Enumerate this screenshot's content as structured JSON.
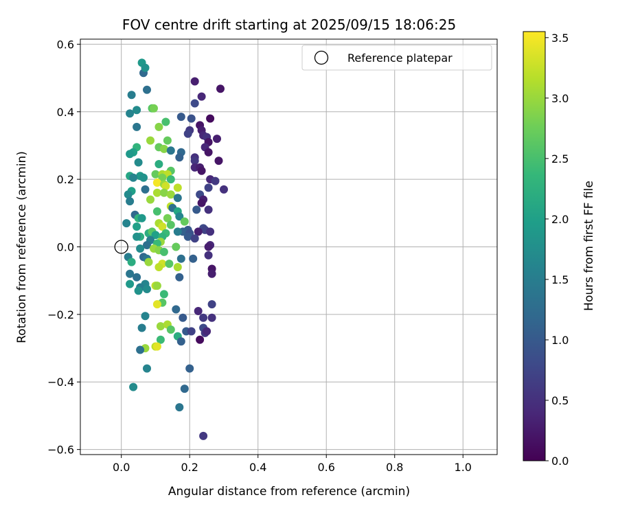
{
  "chart_data": {
    "type": "scatter",
    "title": "FOV centre drift starting at 2025/09/15 18:06:25",
    "xlabel": "Angular distance from reference (arcmin)",
    "ylabel": "Rotation from reference (arcmin)",
    "xlim": [
      -0.12,
      1.1
    ],
    "ylim": [
      -0.615,
      0.615
    ],
    "xticks": [
      0.0,
      0.2,
      0.4,
      0.6,
      0.8,
      1.0
    ],
    "xtick_labels": [
      "0.0",
      "0.2",
      "0.4",
      "0.6",
      "0.8",
      "1.0"
    ],
    "yticks": [
      -0.6,
      -0.4,
      -0.2,
      0.0,
      0.2,
      0.4,
      0.6
    ],
    "ytick_labels": [
      "−0.6",
      "−0.4",
      "−0.2",
      "0.0",
      "0.2",
      "0.4",
      "0.6"
    ],
    "grid": true,
    "colormap": "viridis",
    "colormap_stops": [
      "#440154",
      "#482878",
      "#3e4989",
      "#31688e",
      "#26828e",
      "#1f9e89",
      "#35b779",
      "#6ece58",
      "#b5de2b",
      "#fde725"
    ],
    "colorbar": {
      "label": "Hours from first FF file",
      "range": [
        0.0,
        3.55
      ],
      "ticks": [
        0.0,
        0.5,
        1.0,
        1.5,
        2.0,
        2.5,
        3.0,
        3.5
      ],
      "tick_labels": [
        "0.0",
        "0.5",
        "1.0",
        "1.5",
        "2.0",
        "2.5",
        "3.0",
        "3.5"
      ]
    },
    "legend": {
      "placement": "top-right",
      "entries": [
        {
          "label": "Reference platepar",
          "marker": "open-circle"
        }
      ]
    },
    "reference_point": {
      "x": 0.0,
      "y": 0.0
    },
    "points": [
      {
        "x": 0.06,
        "y": 0.545,
        "c": 1.9
      },
      {
        "x": 0.065,
        "y": 0.515,
        "c": 1.2
      },
      {
        "x": 0.07,
        "y": 0.53,
        "c": 1.8
      },
      {
        "x": 0.075,
        "y": 0.465,
        "c": 1.3
      },
      {
        "x": 0.03,
        "y": 0.45,
        "c": 1.5
      },
      {
        "x": 0.09,
        "y": 0.41,
        "c": 2.6
      },
      {
        "x": 0.025,
        "y": 0.395,
        "c": 1.6
      },
      {
        "x": 0.045,
        "y": 0.405,
        "c": 1.7
      },
      {
        "x": 0.095,
        "y": 0.41,
        "c": 2.8
      },
      {
        "x": 0.13,
        "y": 0.37,
        "c": 2.5
      },
      {
        "x": 0.11,
        "y": 0.355,
        "c": 2.9
      },
      {
        "x": 0.045,
        "y": 0.355,
        "c": 1.4
      },
      {
        "x": 0.215,
        "y": 0.49,
        "c": 0.3
      },
      {
        "x": 0.235,
        "y": 0.445,
        "c": 0.4
      },
      {
        "x": 0.29,
        "y": 0.468,
        "c": 0.2
      },
      {
        "x": 0.215,
        "y": 0.425,
        "c": 0.8
      },
      {
        "x": 0.175,
        "y": 0.385,
        "c": 1.0
      },
      {
        "x": 0.205,
        "y": 0.38,
        "c": 0.9
      },
      {
        "x": 0.26,
        "y": 0.38,
        "c": 0.1
      },
      {
        "x": 0.23,
        "y": 0.36,
        "c": 0.2
      },
      {
        "x": 0.235,
        "y": 0.345,
        "c": 0.3
      },
      {
        "x": 0.2,
        "y": 0.345,
        "c": 0.6
      },
      {
        "x": 0.195,
        "y": 0.335,
        "c": 0.7
      },
      {
        "x": 0.24,
        "y": 0.33,
        "c": 0.4
      },
      {
        "x": 0.25,
        "y": 0.325,
        "c": 0.5
      },
      {
        "x": 0.28,
        "y": 0.32,
        "c": 0.3
      },
      {
        "x": 0.255,
        "y": 0.31,
        "c": 0.2
      },
      {
        "x": 0.245,
        "y": 0.295,
        "c": 0.4
      },
      {
        "x": 0.255,
        "y": 0.28,
        "c": 0.2
      },
      {
        "x": 0.135,
        "y": 0.315,
        "c": 2.7
      },
      {
        "x": 0.085,
        "y": 0.315,
        "c": 3.0
      },
      {
        "x": 0.045,
        "y": 0.295,
        "c": 2.3
      },
      {
        "x": 0.11,
        "y": 0.295,
        "c": 2.7
      },
      {
        "x": 0.125,
        "y": 0.29,
        "c": 2.9
      },
      {
        "x": 0.145,
        "y": 0.285,
        "c": 1.4
      },
      {
        "x": 0.175,
        "y": 0.28,
        "c": 1.2
      },
      {
        "x": 0.035,
        "y": 0.28,
        "c": 2.0
      },
      {
        "x": 0.025,
        "y": 0.275,
        "c": 1.9
      },
      {
        "x": 0.17,
        "y": 0.265,
        "c": 1.1
      },
      {
        "x": 0.215,
        "y": 0.265,
        "c": 0.5
      },
      {
        "x": 0.215,
        "y": 0.255,
        "c": 0.6
      },
      {
        "x": 0.285,
        "y": 0.255,
        "c": 0.2
      },
      {
        "x": 0.05,
        "y": 0.25,
        "c": 1.7
      },
      {
        "x": 0.11,
        "y": 0.245,
        "c": 2.2
      },
      {
        "x": 0.215,
        "y": 0.235,
        "c": 0.4
      },
      {
        "x": 0.23,
        "y": 0.235,
        "c": 0.3
      },
      {
        "x": 0.235,
        "y": 0.225,
        "c": 0.2
      },
      {
        "x": 0.145,
        "y": 0.225,
        "c": 2.6
      },
      {
        "x": 0.1,
        "y": 0.215,
        "c": 2.7
      },
      {
        "x": 0.12,
        "y": 0.215,
        "c": 3.1
      },
      {
        "x": 0.135,
        "y": 0.215,
        "c": 3.2
      },
      {
        "x": 0.025,
        "y": 0.21,
        "c": 2.1
      },
      {
        "x": 0.055,
        "y": 0.21,
        "c": 1.9
      },
      {
        "x": 0.065,
        "y": 0.205,
        "c": 1.8
      },
      {
        "x": 0.035,
        "y": 0.205,
        "c": 1.6
      },
      {
        "x": 0.12,
        "y": 0.205,
        "c": 2.8
      },
      {
        "x": 0.145,
        "y": 0.2,
        "c": 2.4
      },
      {
        "x": 0.26,
        "y": 0.2,
        "c": 0.4
      },
      {
        "x": 0.275,
        "y": 0.195,
        "c": 0.6
      },
      {
        "x": 0.105,
        "y": 0.19,
        "c": 3.5
      },
      {
        "x": 0.125,
        "y": 0.185,
        "c": 3.0
      },
      {
        "x": 0.13,
        "y": 0.18,
        "c": 3.3
      },
      {
        "x": 0.165,
        "y": 0.175,
        "c": 3.2
      },
      {
        "x": 0.255,
        "y": 0.175,
        "c": 0.7
      },
      {
        "x": 0.3,
        "y": 0.17,
        "c": 0.5
      },
      {
        "x": 0.07,
        "y": 0.17,
        "c": 1.3
      },
      {
        "x": 0.03,
        "y": 0.165,
        "c": 2.0
      },
      {
        "x": 0.105,
        "y": 0.16,
        "c": 3.1
      },
      {
        "x": 0.125,
        "y": 0.16,
        "c": 2.9
      },
      {
        "x": 0.02,
        "y": 0.155,
        "c": 1.7
      },
      {
        "x": 0.23,
        "y": 0.155,
        "c": 0.8
      },
      {
        "x": 0.145,
        "y": 0.155,
        "c": 3.0
      },
      {
        "x": 0.165,
        "y": 0.145,
        "c": 1.4
      },
      {
        "x": 0.085,
        "y": 0.14,
        "c": 3.0
      },
      {
        "x": 0.24,
        "y": 0.14,
        "c": 0.3
      },
      {
        "x": 0.025,
        "y": 0.135,
        "c": 1.5
      },
      {
        "x": 0.235,
        "y": 0.13,
        "c": 0.2
      },
      {
        "x": 0.145,
        "y": 0.12,
        "c": 3.2
      },
      {
        "x": 0.15,
        "y": 0.115,
        "c": 1.3
      },
      {
        "x": 0.255,
        "y": 0.11,
        "c": 0.5
      },
      {
        "x": 0.22,
        "y": 0.11,
        "c": 1.0
      },
      {
        "x": 0.105,
        "y": 0.105,
        "c": 2.5
      },
      {
        "x": 0.165,
        "y": 0.105,
        "c": 2.1
      },
      {
        "x": 0.17,
        "y": 0.09,
        "c": 1.6
      },
      {
        "x": 0.04,
        "y": 0.095,
        "c": 1.2
      },
      {
        "x": 0.05,
        "y": 0.085,
        "c": 2.3
      },
      {
        "x": 0.135,
        "y": 0.085,
        "c": 2.8
      },
      {
        "x": 0.06,
        "y": 0.085,
        "c": 1.9
      },
      {
        "x": 0.185,
        "y": 0.075,
        "c": 2.7
      },
      {
        "x": 0.11,
        "y": 0.07,
        "c": 3.1
      },
      {
        "x": 0.015,
        "y": 0.07,
        "c": 1.6
      },
      {
        "x": 0.145,
        "y": 0.065,
        "c": 2.6
      },
      {
        "x": 0.12,
        "y": 0.06,
        "c": 3.3
      },
      {
        "x": 0.045,
        "y": 0.06,
        "c": 2.0
      },
      {
        "x": 0.24,
        "y": 0.055,
        "c": 0.8
      },
      {
        "x": 0.245,
        "y": 0.05,
        "c": 0.7
      },
      {
        "x": 0.195,
        "y": 0.05,
        "c": 1.0
      },
      {
        "x": 0.18,
        "y": 0.045,
        "c": 1.1
      },
      {
        "x": 0.26,
        "y": 0.045,
        "c": 0.5
      },
      {
        "x": 0.225,
        "y": 0.045,
        "c": 0.3
      },
      {
        "x": 0.165,
        "y": 0.045,
        "c": 1.5
      },
      {
        "x": 0.2,
        "y": 0.04,
        "c": 0.9
      },
      {
        "x": 0.08,
        "y": 0.04,
        "c": 2.2
      },
      {
        "x": 0.09,
        "y": 0.045,
        "c": 2.6
      },
      {
        "x": 0.13,
        "y": 0.04,
        "c": 2.4
      },
      {
        "x": 0.1,
        "y": 0.035,
        "c": 2.0
      },
      {
        "x": 0.12,
        "y": 0.03,
        "c": 2.3
      },
      {
        "x": 0.055,
        "y": 0.03,
        "c": 2.2
      },
      {
        "x": 0.045,
        "y": 0.03,
        "c": 1.8
      },
      {
        "x": 0.195,
        "y": 0.03,
        "c": 1.0
      },
      {
        "x": 0.215,
        "y": 0.025,
        "c": 0.7
      },
      {
        "x": 0.085,
        "y": 0.02,
        "c": 1.5
      },
      {
        "x": 0.115,
        "y": 0.015,
        "c": 3.0
      },
      {
        "x": 0.105,
        "y": 0.01,
        "c": 2.4
      },
      {
        "x": 0.075,
        "y": 0.005,
        "c": 1.3
      },
      {
        "x": 0.26,
        "y": 0.005,
        "c": 0.4
      },
      {
        "x": 0.255,
        "y": 0.0,
        "c": 0.3
      },
      {
        "x": 0.055,
        "y": -0.005,
        "c": 1.7
      },
      {
        "x": 0.16,
        "y": 0.0,
        "c": 2.7
      },
      {
        "x": 0.095,
        "y": -0.005,
        "c": 3.0
      },
      {
        "x": 0.11,
        "y": -0.01,
        "c": 2.9
      },
      {
        "x": 0.125,
        "y": -0.015,
        "c": 2.5
      },
      {
        "x": 0.02,
        "y": -0.03,
        "c": 1.5
      },
      {
        "x": 0.065,
        "y": -0.03,
        "c": 1.2
      },
      {
        "x": 0.075,
        "y": -0.035,
        "c": 1.4
      },
      {
        "x": 0.175,
        "y": -0.035,
        "c": 1.3
      },
      {
        "x": 0.21,
        "y": -0.035,
        "c": 1.1
      },
      {
        "x": 0.255,
        "y": -0.025,
        "c": 0.5
      },
      {
        "x": 0.08,
        "y": -0.045,
        "c": 3.0
      },
      {
        "x": 0.03,
        "y": -0.045,
        "c": 2.2
      },
      {
        "x": 0.12,
        "y": -0.05,
        "c": 3.3
      },
      {
        "x": 0.14,
        "y": -0.05,
        "c": 2.6
      },
      {
        "x": 0.11,
        "y": -0.06,
        "c": 3.2
      },
      {
        "x": 0.165,
        "y": -0.06,
        "c": 3.1
      },
      {
        "x": 0.265,
        "y": -0.065,
        "c": 0.2
      },
      {
        "x": 0.265,
        "y": -0.08,
        "c": 0.3
      },
      {
        "x": 0.025,
        "y": -0.08,
        "c": 1.4
      },
      {
        "x": 0.045,
        "y": -0.09,
        "c": 1.3
      },
      {
        "x": 0.17,
        "y": -0.09,
        "c": 1.1
      },
      {
        "x": 0.025,
        "y": -0.11,
        "c": 1.9
      },
      {
        "x": 0.07,
        "y": -0.11,
        "c": 1.6
      },
      {
        "x": 0.1,
        "y": -0.115,
        "c": 3.2
      },
      {
        "x": 0.105,
        "y": -0.115,
        "c": 3.0
      },
      {
        "x": 0.055,
        "y": -0.12,
        "c": 1.5
      },
      {
        "x": 0.075,
        "y": -0.125,
        "c": 1.7
      },
      {
        "x": 0.05,
        "y": -0.13,
        "c": 1.8
      },
      {
        "x": 0.125,
        "y": -0.14,
        "c": 2.4
      },
      {
        "x": 0.12,
        "y": -0.165,
        "c": 2.6
      },
      {
        "x": 0.105,
        "y": -0.17,
        "c": 3.4
      },
      {
        "x": 0.265,
        "y": -0.17,
        "c": 0.7
      },
      {
        "x": 0.16,
        "y": -0.185,
        "c": 1.2
      },
      {
        "x": 0.225,
        "y": -0.19,
        "c": 0.4
      },
      {
        "x": 0.07,
        "y": -0.205,
        "c": 1.6
      },
      {
        "x": 0.18,
        "y": -0.21,
        "c": 1.0
      },
      {
        "x": 0.24,
        "y": -0.21,
        "c": 0.6
      },
      {
        "x": 0.265,
        "y": -0.21,
        "c": 0.5
      },
      {
        "x": 0.115,
        "y": -0.235,
        "c": 3.0
      },
      {
        "x": 0.135,
        "y": -0.23,
        "c": 3.1
      },
      {
        "x": 0.145,
        "y": -0.245,
        "c": 2.6
      },
      {
        "x": 0.06,
        "y": -0.24,
        "c": 1.5
      },
      {
        "x": 0.24,
        "y": -0.24,
        "c": 0.8
      },
      {
        "x": 0.245,
        "y": -0.255,
        "c": 0.6
      },
      {
        "x": 0.19,
        "y": -0.25,
        "c": 1.0
      },
      {
        "x": 0.205,
        "y": -0.25,
        "c": 0.7
      },
      {
        "x": 0.25,
        "y": -0.25,
        "c": 0.4
      },
      {
        "x": 0.165,
        "y": -0.265,
        "c": 2.2
      },
      {
        "x": 0.115,
        "y": -0.275,
        "c": 2.4
      },
      {
        "x": 0.175,
        "y": -0.28,
        "c": 1.1
      },
      {
        "x": 0.23,
        "y": -0.275,
        "c": 0.1
      },
      {
        "x": 0.1,
        "y": -0.295,
        "c": 3.2
      },
      {
        "x": 0.105,
        "y": -0.295,
        "c": 3.4
      },
      {
        "x": 0.07,
        "y": -0.3,
        "c": 3.0
      },
      {
        "x": 0.055,
        "y": -0.305,
        "c": 1.3
      },
      {
        "x": 0.2,
        "y": -0.36,
        "c": 1.1
      },
      {
        "x": 0.075,
        "y": -0.36,
        "c": 1.6
      },
      {
        "x": 0.035,
        "y": -0.415,
        "c": 1.7
      },
      {
        "x": 0.185,
        "y": -0.42,
        "c": 1.2
      },
      {
        "x": 0.17,
        "y": -0.475,
        "c": 1.4
      },
      {
        "x": 0.24,
        "y": -0.56,
        "c": 0.6
      }
    ]
  }
}
